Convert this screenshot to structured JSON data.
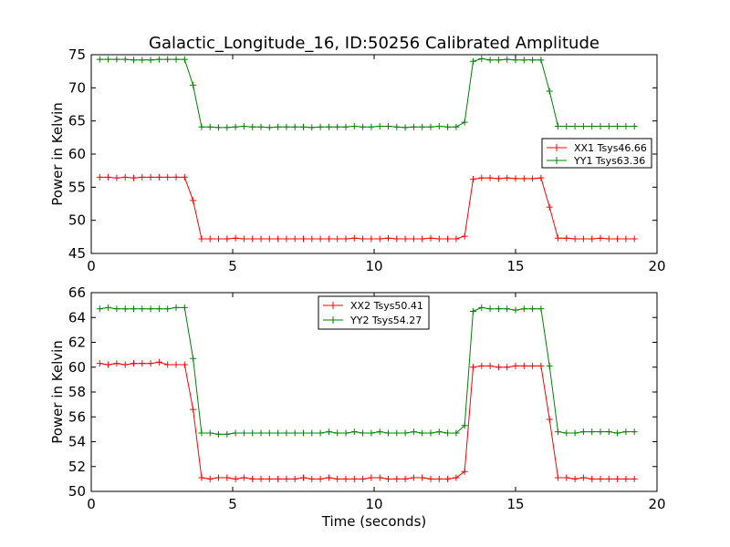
{
  "colors": {
    "xx": "#ff0000",
    "yy": "#008000",
    "frame": "#000000",
    "background": "#ffffff"
  },
  "chart_data": [
    {
      "type": "line",
      "title": "Galactic_Longitude_16, ID:50256 Calibrated Amplitude",
      "xlabel": "",
      "ylabel": "Power in Kelvin",
      "xlim": [
        0,
        20
      ],
      "ylim": [
        45,
        75
      ],
      "xticks": [
        0,
        5,
        10,
        15,
        20
      ],
      "yticks": [
        45,
        50,
        55,
        60,
        65,
        70,
        75
      ],
      "x_tick_labels": [
        "0",
        "5",
        "10",
        "15",
        "20"
      ],
      "y_tick_labels": [
        "45",
        "50",
        "55",
        "60",
        "65",
        "70",
        "75"
      ],
      "legend_position": "right",
      "x": [
        0.3,
        0.6,
        0.9,
        1.2,
        1.5,
        1.8,
        2.1,
        2.4,
        2.7,
        3.0,
        3.3,
        3.6,
        3.9,
        4.2,
        4.5,
        4.8,
        5.1,
        5.4,
        5.7,
        6.0,
        6.3,
        6.6,
        6.9,
        7.2,
        7.5,
        7.8,
        8.1,
        8.4,
        8.7,
        9.0,
        9.3,
        9.6,
        9.9,
        10.2,
        10.5,
        10.8,
        11.1,
        11.4,
        11.7,
        12.0,
        12.3,
        12.6,
        12.9,
        13.2,
        13.5,
        13.8,
        14.1,
        14.4,
        14.7,
        15.0,
        15.3,
        15.6,
        15.9,
        16.2,
        16.5,
        16.8,
        17.1,
        17.4,
        17.7,
        18.0,
        18.3,
        18.6,
        18.9,
        19.2
      ],
      "series": [
        {
          "name": "XX1 Tsys46.66",
          "color": "#ff0000",
          "values": [
            56.5,
            56.5,
            56.4,
            56.5,
            56.4,
            56.5,
            56.5,
            56.5,
            56.5,
            56.5,
            56.5,
            53.0,
            47.2,
            47.2,
            47.2,
            47.2,
            47.3,
            47.2,
            47.2,
            47.2,
            47.2,
            47.2,
            47.2,
            47.2,
            47.2,
            47.2,
            47.2,
            47.2,
            47.2,
            47.2,
            47.3,
            47.2,
            47.2,
            47.2,
            47.3,
            47.2,
            47.2,
            47.2,
            47.2,
            47.3,
            47.2,
            47.2,
            47.2,
            47.6,
            56.2,
            56.4,
            56.4,
            56.3,
            56.4,
            56.3,
            56.3,
            56.3,
            56.4,
            52.0,
            47.3,
            47.3,
            47.2,
            47.2,
            47.2,
            47.3,
            47.2,
            47.2,
            47.2,
            47.2
          ]
        },
        {
          "name": "YY1 Tsys63.36",
          "color": "#008000",
          "values": [
            74.3,
            74.3,
            74.3,
            74.3,
            74.2,
            74.2,
            74.2,
            74.3,
            74.3,
            74.3,
            74.3,
            70.4,
            64.1,
            64.1,
            64.0,
            64.0,
            64.1,
            64.2,
            64.1,
            64.1,
            64.0,
            64.1,
            64.1,
            64.1,
            64.1,
            64.0,
            64.1,
            64.1,
            64.1,
            64.1,
            64.2,
            64.1,
            64.1,
            64.2,
            64.2,
            64.1,
            64.0,
            64.1,
            64.1,
            64.1,
            64.2,
            64.1,
            64.1,
            64.8,
            74.0,
            74.4,
            74.2,
            74.2,
            74.3,
            74.2,
            74.2,
            74.2,
            74.2,
            69.5,
            64.2,
            64.2,
            64.2,
            64.2,
            64.2,
            64.2,
            64.2,
            64.2,
            64.2,
            64.2
          ]
        }
      ]
    },
    {
      "type": "line",
      "title": "",
      "xlabel": "Time (seconds)",
      "ylabel": "Power in Kelvin",
      "xlim": [
        0,
        20
      ],
      "ylim": [
        50,
        66
      ],
      "xticks": [
        0,
        5,
        10,
        15,
        20
      ],
      "yticks": [
        50,
        52,
        54,
        56,
        58,
        60,
        62,
        64,
        66
      ],
      "x_tick_labels": [
        "0",
        "5",
        "10",
        "15",
        "20"
      ],
      "y_tick_labels": [
        "50",
        "52",
        "54",
        "56",
        "58",
        "60",
        "62",
        "64",
        "66"
      ],
      "legend_position": "upper center",
      "x": [
        0.3,
        0.6,
        0.9,
        1.2,
        1.5,
        1.8,
        2.1,
        2.4,
        2.7,
        3.0,
        3.3,
        3.6,
        3.9,
        4.2,
        4.5,
        4.8,
        5.1,
        5.4,
        5.7,
        6.0,
        6.3,
        6.6,
        6.9,
        7.2,
        7.5,
        7.8,
        8.1,
        8.4,
        8.7,
        9.0,
        9.3,
        9.6,
        9.9,
        10.2,
        10.5,
        10.8,
        11.1,
        11.4,
        11.7,
        12.0,
        12.3,
        12.6,
        12.9,
        13.2,
        13.5,
        13.8,
        14.1,
        14.4,
        14.7,
        15.0,
        15.3,
        15.6,
        15.9,
        16.2,
        16.5,
        16.8,
        17.1,
        17.4,
        17.7,
        18.0,
        18.3,
        18.6,
        18.9,
        19.2
      ],
      "series": [
        {
          "name": "XX2 Tsys50.41",
          "color": "#ff0000",
          "values": [
            60.3,
            60.2,
            60.3,
            60.2,
            60.3,
            60.3,
            60.3,
            60.4,
            60.2,
            60.2,
            60.2,
            56.6,
            51.1,
            51.0,
            51.1,
            51.1,
            51.0,
            51.1,
            51.0,
            51.0,
            51.0,
            51.0,
            51.0,
            51.0,
            51.1,
            51.0,
            51.0,
            51.1,
            51.0,
            51.0,
            51.0,
            51.0,
            51.1,
            51.1,
            51.0,
            51.0,
            51.0,
            51.1,
            51.1,
            51.0,
            51.0,
            51.0,
            51.1,
            51.6,
            60.0,
            60.1,
            60.1,
            60.0,
            60.0,
            60.1,
            60.1,
            60.1,
            60.1,
            55.8,
            51.1,
            51.1,
            51.0,
            51.1,
            51.0,
            51.0,
            51.0,
            51.0,
            51.0,
            51.0
          ]
        },
        {
          "name": "YY2 Tsys54.27",
          "color": "#008000",
          "values": [
            64.7,
            64.8,
            64.7,
            64.7,
            64.7,
            64.7,
            64.7,
            64.7,
            64.7,
            64.8,
            64.8,
            60.7,
            54.7,
            54.7,
            54.6,
            54.6,
            54.7,
            54.7,
            54.7,
            54.7,
            54.7,
            54.7,
            54.7,
            54.7,
            54.7,
            54.7,
            54.7,
            54.8,
            54.7,
            54.7,
            54.8,
            54.7,
            54.7,
            54.8,
            54.7,
            54.7,
            54.7,
            54.8,
            54.7,
            54.7,
            54.8,
            54.7,
            54.7,
            55.3,
            64.5,
            64.8,
            64.7,
            64.7,
            64.7,
            64.6,
            64.7,
            64.7,
            64.7,
            60.1,
            54.8,
            54.7,
            54.7,
            54.8,
            54.8,
            54.8,
            54.8,
            54.7,
            54.8,
            54.8
          ]
        }
      ]
    }
  ]
}
